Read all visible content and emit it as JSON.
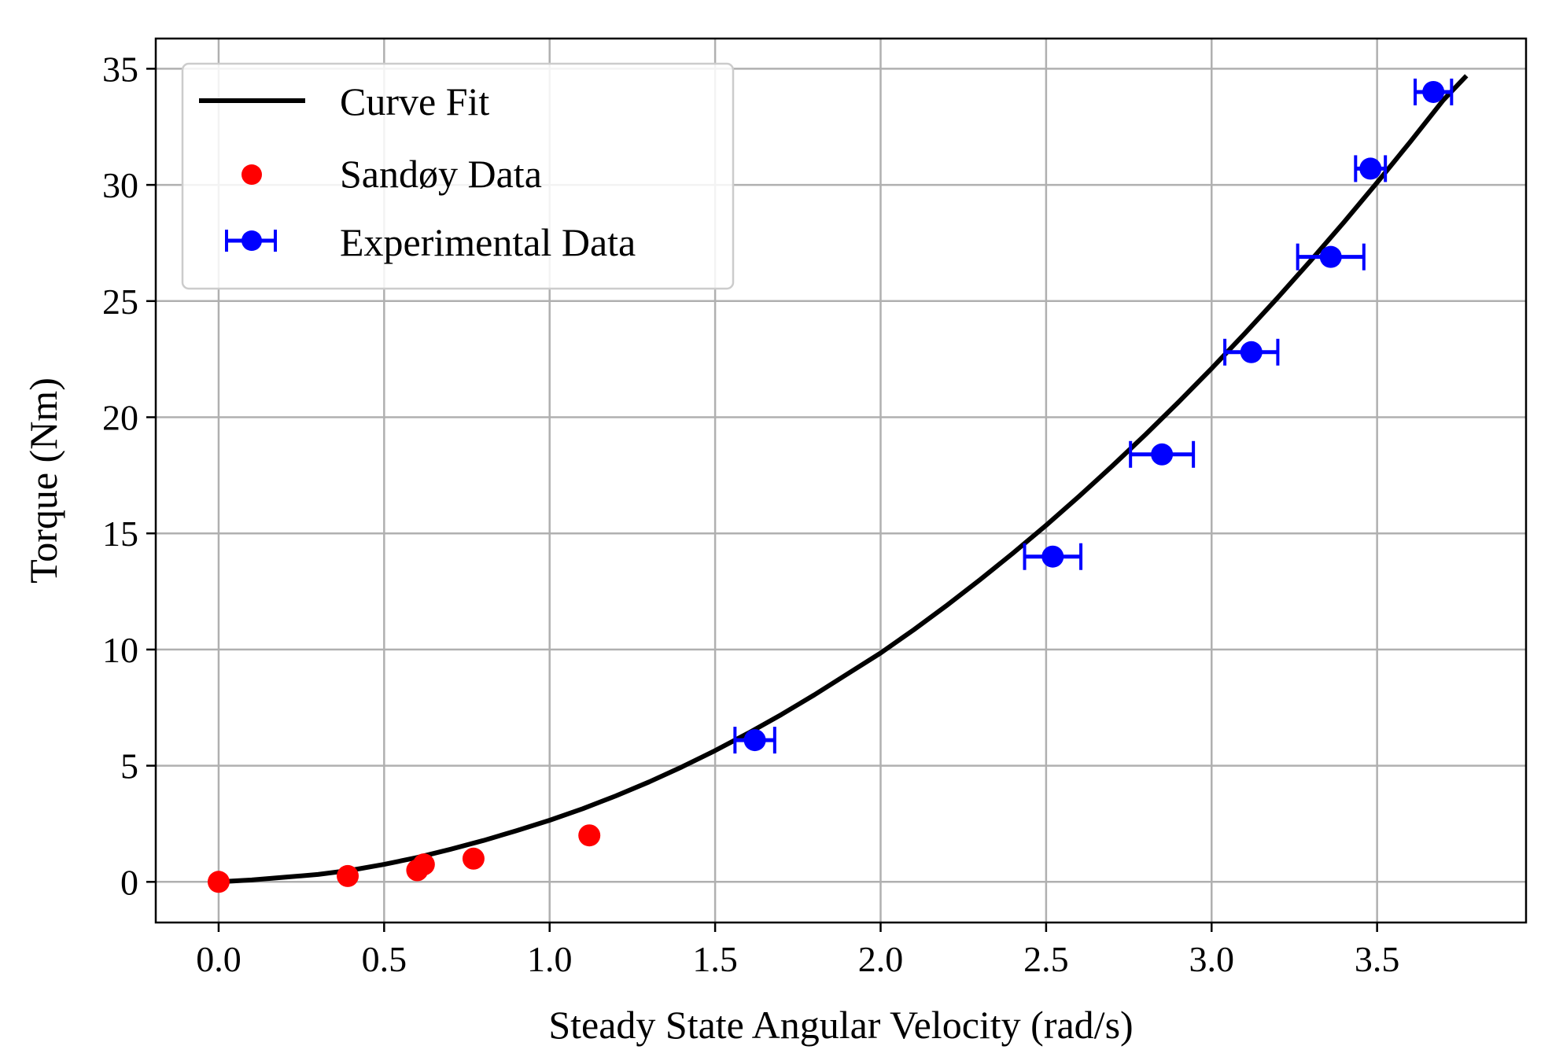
{
  "chart_data": {
    "type": "scatter",
    "title": "",
    "xlabel": "Steady State Angular Velocity (rad/s)",
    "ylabel": "Torque (Nm)",
    "xlim": [
      -0.19,
      3.95
    ],
    "ylim": [
      -1.75,
      36.3
    ],
    "grid": true,
    "legend_position": "top-left",
    "x_ticks": [
      0.0,
      0.5,
      1.0,
      1.5,
      2.0,
      2.5,
      3.0,
      3.5
    ],
    "x_tick_labels": [
      "0.0",
      "0.5",
      "1.0",
      "1.5",
      "2.0",
      "2.5",
      "3.0",
      "3.5"
    ],
    "y_ticks": [
      0,
      5,
      10,
      15,
      20,
      25,
      30,
      35
    ],
    "y_tick_labels": [
      "0",
      "5",
      "10",
      "15",
      "20",
      "25",
      "30",
      "35"
    ],
    "series": [
      {
        "name": "Curve Fit",
        "kind": "line",
        "color": "#000000",
        "x": [
          0.0,
          0.1,
          0.2,
          0.3,
          0.4,
          0.5,
          0.6,
          0.7,
          0.8,
          0.9,
          1.0,
          1.1,
          1.2,
          1.3,
          1.4,
          1.5,
          1.6,
          1.7,
          1.8,
          1.9,
          2.0,
          2.1,
          2.2,
          2.3,
          2.4,
          2.5,
          2.6,
          2.7,
          2.8,
          2.9,
          3.0,
          3.1,
          3.2,
          3.3,
          3.4,
          3.5,
          3.6,
          3.7,
          3.77
        ],
        "y": [
          0.0,
          0.08,
          0.2,
          0.32,
          0.5,
          0.75,
          1.05,
          1.4,
          1.78,
          2.2,
          2.65,
          3.15,
          3.7,
          4.3,
          4.95,
          5.65,
          6.4,
          7.2,
          8.05,
          8.95,
          9.85,
          10.85,
          11.9,
          13.0,
          14.15,
          15.35,
          16.6,
          17.9,
          19.25,
          20.65,
          22.1,
          23.6,
          25.15,
          26.75,
          28.4,
          30.1,
          31.85,
          33.65,
          34.7
        ]
      },
      {
        "name": "Sandøy Data",
        "kind": "scatter",
        "color": "#ff0000",
        "x": [
          0.0,
          0.39,
          0.6,
          0.62,
          0.77,
          1.12
        ],
        "y": [
          0.0,
          0.25,
          0.5,
          0.75,
          1.0,
          2.0
        ]
      },
      {
        "name": "Experimental Data",
        "kind": "errorbar",
        "color": "#0000ff",
        "x": [
          1.62,
          2.52,
          2.85,
          3.12,
          3.36,
          3.48,
          3.67
        ],
        "y": [
          6.1,
          14.0,
          18.4,
          22.8,
          26.9,
          30.7,
          34.0
        ],
        "xerr": [
          0.06,
          0.085,
          0.095,
          0.08,
          0.1,
          0.045,
          0.055
        ]
      }
    ]
  }
}
